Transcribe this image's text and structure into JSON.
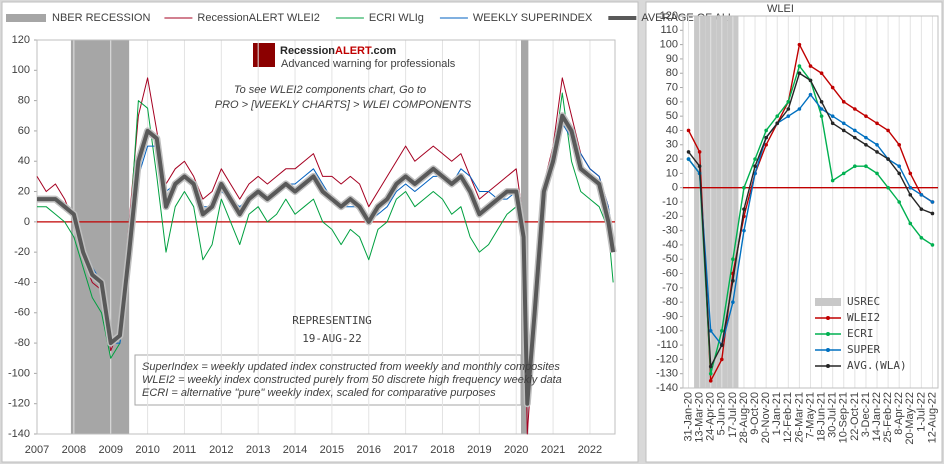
{
  "chart_data": [
    {
      "type": "line",
      "legend": "top",
      "grid": "x",
      "zero_line": true,
      "xlim": [
        2007,
        2022.68
      ],
      "xticks": [
        2007,
        2008,
        2009,
        2010,
        2011,
        2012,
        2013,
        2014,
        2015,
        2016,
        2017,
        2018,
        2019,
        2020,
        2021,
        2022
      ],
      "ylim": [
        -140,
        120
      ],
      "yticks": [
        -140,
        -120,
        -100,
        -80,
        -60,
        -40,
        -20,
        0,
        20,
        40,
        60,
        80,
        100,
        120
      ],
      "logo_parts": [
        "Recession",
        "ALERT",
        ".com"
      ],
      "logo_tagline": "Advanced warning for professionals",
      "annotations": [
        "To see WLEI2 components chart, Go to",
        "PRO > [WEEKLY CHARTS] > WLEI COMPONENTS",
        "REPRESENTING",
        "19-AUG-22",
        "SuperIndex = weekly updated index constructed from weekly and monthly composites",
        "WLEI2 = weekly index constructed purely from 50 discrete high frequency weekly data",
        "ECRI = alternative \"pure\" weekly index, scaled for comparative purposes"
      ],
      "recession": {
        "name": "NBER RECESSION",
        "color": "#a6a6a6",
        "periods": [
          [
            2007.92,
            2009.5
          ],
          [
            2020.13,
            2020.33
          ]
        ]
      },
      "x": [
        2007,
        2007.25,
        2007.5,
        2007.75,
        2008,
        2008.25,
        2008.5,
        2008.75,
        2009,
        2009.25,
        2009.5,
        2009.75,
        2010,
        2010.25,
        2010.5,
        2010.75,
        2011,
        2011.25,
        2011.5,
        2011.75,
        2012,
        2012.25,
        2012.5,
        2012.75,
        2013,
        2013.25,
        2013.5,
        2013.75,
        2014,
        2014.25,
        2014.5,
        2014.75,
        2015,
        2015.25,
        2015.5,
        2015.75,
        2016,
        2016.25,
        2016.5,
        2016.75,
        2017,
        2017.25,
        2017.5,
        2017.75,
        2018,
        2018.25,
        2018.5,
        2018.75,
        2019,
        2019.25,
        2019.5,
        2019.75,
        2020,
        2020.2,
        2020.3,
        2020.5,
        2020.75,
        2021,
        2021.25,
        2021.5,
        2021.75,
        2022,
        2022.25,
        2022.5,
        2022.63
      ],
      "series": [
        {
          "name": "RecessionALERT WLEI2",
          "color": "#a50021",
          "width": 1,
          "values": [
            30,
            20,
            25,
            15,
            0,
            -25,
            -40,
            -45,
            -85,
            -70,
            0,
            70,
            95,
            60,
            25,
            35,
            40,
            30,
            15,
            20,
            35,
            25,
            15,
            25,
            30,
            25,
            30,
            35,
            35,
            40,
            45,
            30,
            30,
            25,
            30,
            25,
            10,
            20,
            30,
            40,
            50,
            40,
            45,
            50,
            45,
            40,
            45,
            30,
            15,
            20,
            25,
            30,
            35,
            0,
            -140,
            -70,
            25,
            50,
            95,
            70,
            45,
            35,
            30,
            10,
            -15
          ]
        },
        {
          "name": "ECRI WLIg",
          "color": "#00a040",
          "width": 1,
          "values": [
            10,
            10,
            5,
            0,
            -10,
            -30,
            -50,
            -60,
            -90,
            -80,
            -10,
            80,
            75,
            30,
            -20,
            10,
            20,
            10,
            -25,
            -15,
            15,
            0,
            -15,
            5,
            10,
            0,
            5,
            15,
            5,
            10,
            15,
            0,
            -5,
            -15,
            -5,
            -10,
            -25,
            -5,
            0,
            15,
            20,
            10,
            15,
            20,
            15,
            5,
            10,
            -10,
            -20,
            -15,
            -5,
            5,
            10,
            -20,
            -110,
            -50,
            20,
            40,
            85,
            40,
            20,
            15,
            10,
            -5,
            -40
          ]
        },
        {
          "name": "WEEKLY SUPERINDEX",
          "color": "#0060c0",
          "width": 1,
          "values": [
            15,
            15,
            15,
            10,
            5,
            -15,
            -30,
            -40,
            -80,
            -80,
            -30,
            30,
            50,
            50,
            20,
            25,
            30,
            25,
            10,
            10,
            20,
            15,
            10,
            15,
            20,
            15,
            20,
            25,
            25,
            30,
            35,
            25,
            15,
            10,
            10,
            10,
            0,
            5,
            10,
            20,
            25,
            20,
            25,
            30,
            30,
            25,
            35,
            30,
            20,
            20,
            15,
            15,
            20,
            -5,
            -110,
            -60,
            20,
            40,
            65,
            55,
            45,
            35,
            30,
            10,
            -10
          ]
        },
        {
          "name": "AVERAGE OF ALL",
          "color": "#595959",
          "width": 4,
          "values": [
            15,
            15,
            15,
            10,
            5,
            -20,
            -35,
            -40,
            -80,
            -75,
            -20,
            40,
            60,
            55,
            10,
            25,
            30,
            25,
            5,
            10,
            25,
            15,
            5,
            15,
            20,
            15,
            20,
            25,
            20,
            25,
            30,
            20,
            15,
            10,
            15,
            10,
            0,
            10,
            15,
            25,
            30,
            25,
            30,
            35,
            30,
            25,
            30,
            20,
            5,
            10,
            15,
            20,
            20,
            -10,
            -120,
            -60,
            20,
            40,
            70,
            60,
            35,
            30,
            25,
            0,
            -20
          ]
        }
      ]
    },
    {
      "type": "line",
      "title": "WLEI",
      "legend": "lower right",
      "grid": "x",
      "zero_line": true,
      "markers": true,
      "categories": [
        "31-Jan-20",
        "13-Mar-20",
        "24-Apr-20",
        "5-Jun-20",
        "17-Jul-20",
        "28-Aug-20",
        "9-Oct-20",
        "20-Nov-20",
        "1-Jan-21",
        "12-Feb-21",
        "26-Mar-21",
        "7-May-21",
        "18-Jun-21",
        "30-Jul-21",
        "10-Sep-21",
        "22-Oct-21",
        "3-Dec-21",
        "14-Jan-22",
        "25-Feb-22",
        "8-Apr-22",
        "20-May-22",
        "1-Jul-22",
        "12-Aug-22"
      ],
      "ylim": [
        -140,
        120
      ],
      "yticks": [
        -140,
        -130,
        -120,
        -110,
        -100,
        -90,
        -80,
        -70,
        -60,
        -50,
        -40,
        -30,
        -20,
        -10,
        0,
        10,
        20,
        30,
        40,
        50,
        60,
        70,
        80,
        90,
        100,
        110,
        120
      ],
      "recession": {
        "name": "USREC",
        "color": "#c8c8c8",
        "values": [
          0,
          1,
          1,
          1,
          1,
          0,
          0,
          0,
          0,
          0,
          0,
          0,
          0,
          0,
          0,
          0,
          0,
          0,
          0,
          0,
          0,
          0,
          0
        ]
      },
      "series": [
        {
          "name": "WLEI2",
          "color": "#c00000",
          "values": [
            40,
            25,
            -135,
            -120,
            -60,
            -20,
            10,
            30,
            45,
            60,
            100,
            85,
            80,
            70,
            60,
            55,
            50,
            45,
            40,
            30,
            10,
            -5,
            -10
          ]
        },
        {
          "name": "ECRI",
          "color": "#00b050",
          "values": [
            20,
            10,
            -130,
            -100,
            -50,
            0,
            20,
            40,
            50,
            60,
            85,
            75,
            50,
            5,
            10,
            15,
            15,
            10,
            0,
            -10,
            -25,
            -35,
            -40
          ]
        },
        {
          "name": "SUPER",
          "color": "#0070c0",
          "values": [
            20,
            10,
            -100,
            -110,
            -80,
            -30,
            10,
            35,
            45,
            50,
            55,
            65,
            55,
            50,
            45,
            40,
            35,
            30,
            20,
            15,
            0,
            -5,
            -10
          ]
        },
        {
          "name": "AVG.(WLA)",
          "color": "#262626",
          "values": [
            25,
            15,
            -125,
            -110,
            -65,
            -15,
            15,
            35,
            45,
            55,
            80,
            75,
            60,
            45,
            40,
            35,
            30,
            25,
            20,
            10,
            -5,
            -15,
            -18
          ]
        }
      ]
    }
  ]
}
